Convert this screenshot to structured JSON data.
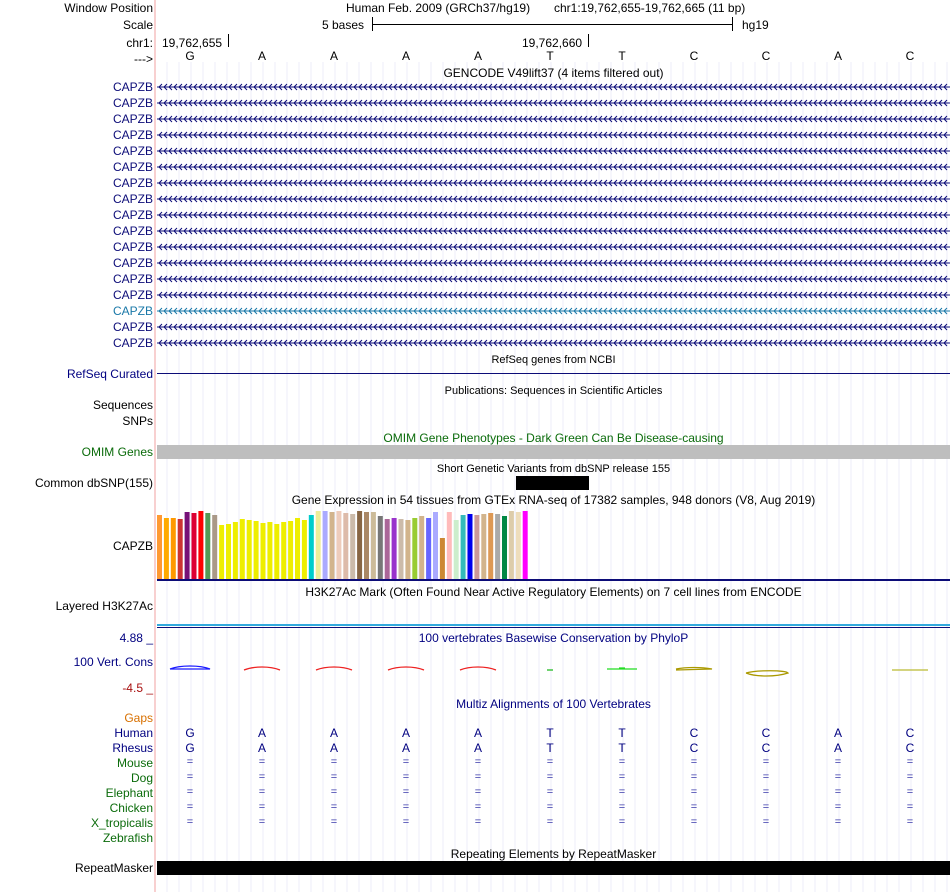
{
  "header": {
    "window_position_label": "Window Position",
    "scale_label": "Scale",
    "chrom_label": "chr1:",
    "strand_label": "--->",
    "assembly": "Human Feb. 2009 (GRCh37/hg19)",
    "position": "chr1:19,762,655-19,762,665 (11 bp)",
    "scale_text": "5 bases",
    "db": "hg19",
    "coord_left": "19,762,655",
    "coord_mid": "19,762,660"
  },
  "bases": [
    "G",
    "A",
    "A",
    "A",
    "A",
    "T",
    "T",
    "C",
    "C",
    "A",
    "C"
  ],
  "gencode": {
    "title": "GENCODE V49lift37 (4 items filtered out)",
    "gene_labels": [
      "CAPZB",
      "CAPZB",
      "CAPZB",
      "CAPZB",
      "CAPZB",
      "CAPZB",
      "CAPZB",
      "CAPZB",
      "CAPZB",
      "CAPZB",
      "CAPZB",
      "CAPZB",
      "CAPZB",
      "CAPZB",
      "CAPZB",
      "CAPZB",
      "CAPZB"
    ],
    "highlight_index": 14,
    "colors": {
      "default": "#0c0c78",
      "highlight": "#1a78a8"
    }
  },
  "refseq": {
    "title": "RefSeq genes from NCBI",
    "label": "RefSeq Curated"
  },
  "publications": {
    "title": "Publications: Sequences in Scientific Articles",
    "label1": "Sequences",
    "label2": "SNPs"
  },
  "omim": {
    "title": "OMIM Gene Phenotypes - Dark Green Can Be Disease-causing",
    "label": "OMIM Genes"
  },
  "dbsnp": {
    "title": "Short Genetic Variants from dbSNP release 155",
    "label": "Common dbSNP(155)"
  },
  "gtex": {
    "title": "Gene Expression in 54 tissues from GTEx RNA-seq of 17382 samples, 948 donors (V8, Aug 2019)",
    "label": "CAPZB",
    "bars": [
      {
        "c": "#ff9933",
        "v": 0.94
      },
      {
        "c": "#ffaa00",
        "v": 0.9
      },
      {
        "c": "#ff9900",
        "v": 0.9
      },
      {
        "c": "#cc3333",
        "v": 0.88
      },
      {
        "c": "#771177",
        "v": 0.99
      },
      {
        "c": "#dd0033",
        "v": 0.97
      },
      {
        "c": "#ff0000",
        "v": 1.0
      },
      {
        "c": "#559955",
        "v": 0.97
      },
      {
        "c": "#aa9988",
        "v": 0.94
      },
      {
        "c": "#eeee00",
        "v": 0.79
      },
      {
        "c": "#eeee00",
        "v": 0.81
      },
      {
        "c": "#eeee00",
        "v": 0.84
      },
      {
        "c": "#eeee00",
        "v": 0.88
      },
      {
        "c": "#eeee00",
        "v": 0.87
      },
      {
        "c": "#eeee00",
        "v": 0.85
      },
      {
        "c": "#eeee00",
        "v": 0.83
      },
      {
        "c": "#eeee00",
        "v": 0.84
      },
      {
        "c": "#eeee00",
        "v": 0.81
      },
      {
        "c": "#eeee00",
        "v": 0.84
      },
      {
        "c": "#eeee00",
        "v": 0.86
      },
      {
        "c": "#eeee00",
        "v": 0.89
      },
      {
        "c": "#eeee00",
        "v": 0.87
      },
      {
        "c": "#00cccc",
        "v": 0.94
      },
      {
        "c": "#eeee99",
        "v": 1.0
      },
      {
        "c": "#aaaaff",
        "v": 1.0
      },
      {
        "c": "#d2b48c",
        "v": 0.99
      },
      {
        "c": "#eeccbb",
        "v": 1.0
      },
      {
        "c": "#ddbbaa",
        "v": 0.97
      },
      {
        "c": "#ccbbaa",
        "v": 0.95
      },
      {
        "c": "#886644",
        "v": 1.0
      },
      {
        "c": "#aa8866",
        "v": 0.99
      },
      {
        "c": "#ccbb99",
        "v": 0.99
      },
      {
        "c": "#777777",
        "v": 0.93
      },
      {
        "c": "#aa6699",
        "v": 0.88
      },
      {
        "c": "#9933cc",
        "v": 0.9
      },
      {
        "c": "#ccbbaa",
        "v": 0.88
      },
      {
        "c": "#d2b48c",
        "v": 0.87
      },
      {
        "c": "#99cc33",
        "v": 0.9
      },
      {
        "c": "#d2b48c",
        "v": 0.92
      },
      {
        "c": "#6666ff",
        "v": 0.9
      },
      {
        "c": "#aaaaff",
        "v": 0.99
      },
      {
        "c": "#cc8833",
        "v": 0.61
      },
      {
        "c": "#ffbbbb",
        "v": 0.98
      },
      {
        "c": "#cceecc",
        "v": 0.87
      },
      {
        "c": "#33bbbb",
        "v": 0.94
      },
      {
        "c": "#0000ee",
        "v": 0.95
      },
      {
        "c": "#cc9999",
        "v": 0.94
      },
      {
        "c": "#d2b48c",
        "v": 0.95
      },
      {
        "c": "#dd9955",
        "v": 0.97
      },
      {
        "c": "#aaaaaa",
        "v": 0.96
      },
      {
        "c": "#008844",
        "v": 0.92
      },
      {
        "c": "#ddccaa",
        "v": 1.0
      },
      {
        "c": "#eeddbb",
        "v": 0.99
      },
      {
        "c": "#ff00ff",
        "v": 1.0
      }
    ]
  },
  "h3k27ac": {
    "title": "H3K27Ac Mark (Often Found Near Active Regulatory Elements) on 7 cell lines from ENCODE",
    "label": "Layered H3K27Ac"
  },
  "phylop": {
    "title": "100 vertebrates Basewise Conservation by PhyloP",
    "label": "100 Vert. Cons",
    "ymax": "4.88 _",
    "ymin": "-4.5 _"
  },
  "multiz": {
    "title": "Multiz Alignments of 100 Vertebrates",
    "gaps_label": "Gaps",
    "species": [
      {
        "name": "Human",
        "type": "seq"
      },
      {
        "name": "Rhesus",
        "type": "seq"
      },
      {
        "name": "Mouse",
        "type": "eq"
      },
      {
        "name": "Dog",
        "type": "eq"
      },
      {
        "name": "Elephant",
        "type": "eq"
      },
      {
        "name": "Chicken",
        "type": "eq"
      },
      {
        "name": "X_tropicalis",
        "type": "eq"
      },
      {
        "name": "Zebrafish",
        "type": "none"
      }
    ],
    "eq_symbol": "="
  },
  "repeatmasker": {
    "title": "Repeating Elements by RepeatMasker",
    "label": "RepeatMasker"
  }
}
